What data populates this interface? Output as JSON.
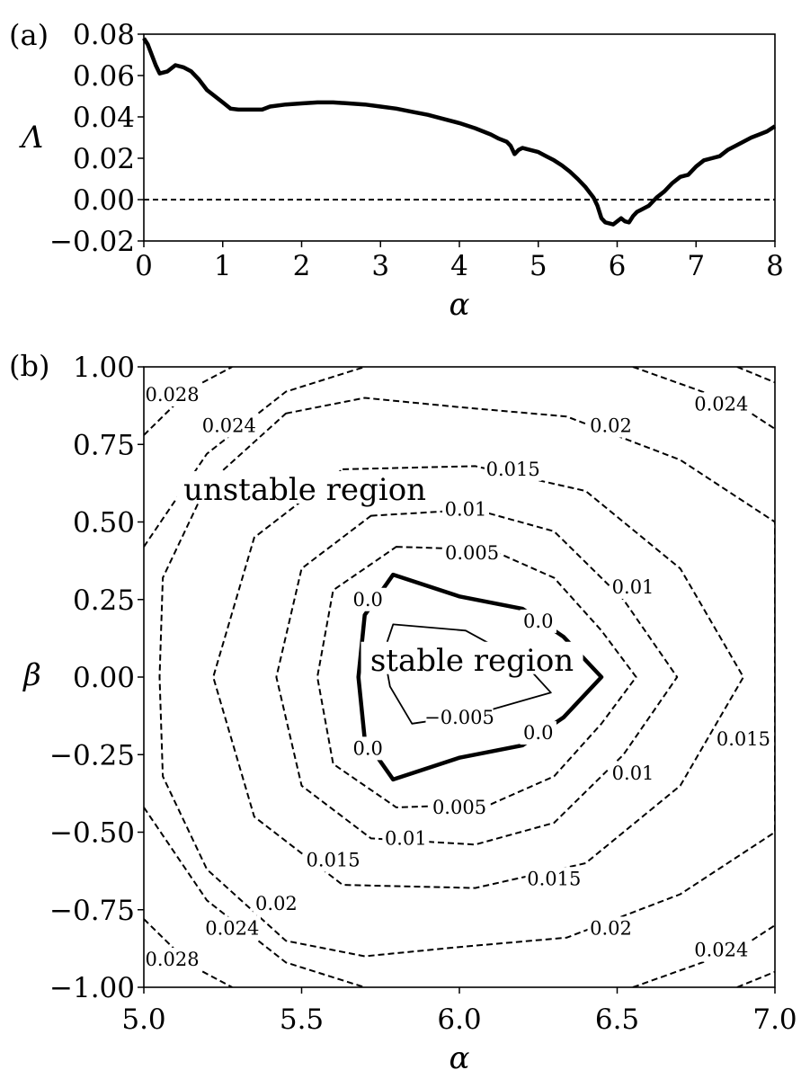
{
  "chart_data": [
    {
      "type": "line",
      "panel_label": "(a)",
      "xlabel": "α",
      "ylabel": "Λ",
      "xlim": [
        0,
        8
      ],
      "ylim": [
        -0.02,
        0.08
      ],
      "xticks": [
        0,
        1,
        2,
        3,
        4,
        5,
        6,
        7,
        8
      ],
      "xtick_labels": [
        "0",
        "1",
        "2",
        "3",
        "4",
        "5",
        "6",
        "7",
        "8"
      ],
      "yticks": [
        -0.02,
        0.0,
        0.02,
        0.04,
        0.06,
        0.08
      ],
      "ytick_labels": [
        "−0.02",
        "0.00",
        "0.02",
        "0.04",
        "0.06",
        "0.08"
      ],
      "grid": false,
      "reference_line": {
        "y": 0.0,
        "style": "dashed"
      },
      "series": [
        {
          "style": "solid-thick",
          "x": [
            0.0,
            0.05,
            0.1,
            0.15,
            0.2,
            0.3,
            0.4,
            0.5,
            0.6,
            0.7,
            0.8,
            0.9,
            1.0,
            1.1,
            1.2,
            1.3,
            1.4,
            1.5,
            1.6,
            1.8,
            2.0,
            2.2,
            2.4,
            2.6,
            2.8,
            3.0,
            3.2,
            3.4,
            3.6,
            3.8,
            4.0,
            4.2,
            4.4,
            4.5,
            4.6,
            4.65,
            4.7,
            4.75,
            4.8,
            4.85,
            4.9,
            5.0,
            5.1,
            5.2,
            5.3,
            5.4,
            5.5,
            5.6,
            5.7,
            5.75,
            5.8,
            5.85,
            5.9,
            5.95,
            6.0,
            6.05,
            6.1,
            6.15,
            6.2,
            6.25,
            6.3,
            6.4,
            6.5,
            6.6,
            6.7,
            6.8,
            6.9,
            7.0,
            7.1,
            7.2,
            7.3,
            7.4,
            7.5,
            7.6,
            7.7,
            7.8,
            7.9,
            8.0
          ],
          "y": [
            0.078,
            0.075,
            0.07,
            0.065,
            0.061,
            0.062,
            0.065,
            0.064,
            0.062,
            0.058,
            0.053,
            0.05,
            0.047,
            0.044,
            0.0435,
            0.0435,
            0.0435,
            0.0435,
            0.045,
            0.046,
            0.0465,
            0.047,
            0.047,
            0.0465,
            0.046,
            0.045,
            0.044,
            0.0425,
            0.041,
            0.039,
            0.037,
            0.0345,
            0.0315,
            0.0295,
            0.028,
            0.026,
            0.022,
            0.024,
            0.025,
            0.0245,
            0.024,
            0.023,
            0.021,
            0.019,
            0.0165,
            0.0135,
            0.01,
            0.006,
            0.001,
            -0.003,
            -0.009,
            -0.011,
            -0.0115,
            -0.012,
            -0.0105,
            -0.009,
            -0.0105,
            -0.011,
            -0.008,
            -0.006,
            -0.005,
            -0.003,
            0.001,
            0.004,
            0.008,
            0.011,
            0.012,
            0.016,
            0.019,
            0.02,
            0.021,
            0.024,
            0.026,
            0.028,
            0.03,
            0.0315,
            0.033,
            0.0355
          ]
        }
      ]
    },
    {
      "type": "contour",
      "panel_label": "(b)",
      "xlabel": "α",
      "ylabel": "β",
      "xlim": [
        5.0,
        7.0
      ],
      "ylim": [
        -1.0,
        1.0
      ],
      "xticks": [
        5.0,
        5.5,
        6.0,
        6.5,
        7.0
      ],
      "xtick_labels": [
        "5.0",
        "5.5",
        "6.0",
        "6.5",
        "7.0"
      ],
      "yticks": [
        -1.0,
        -0.75,
        -0.5,
        -0.25,
        0.0,
        0.25,
        0.5,
        0.75,
        1.0
      ],
      "ytick_labels": [
        "−1.00",
        "−0.75",
        "−0.50",
        "−0.25",
        "0.00",
        "0.25",
        "0.50",
        "0.75",
        "1.00"
      ],
      "grid": false,
      "levels": [
        {
          "value": -0.005,
          "style": "solid-thin",
          "points": [
            [
              5.79,
              0.17
            ],
            [
              6.02,
              0.15
            ],
            [
              6.2,
              0.05
            ],
            [
              6.29,
              -0.05
            ],
            [
              6.22,
              -0.07
            ],
            [
              6.05,
              -0.12
            ],
            [
              5.85,
              -0.15
            ],
            [
              5.78,
              -0.03
            ],
            [
              5.76,
              0.08
            ]
          ]
        },
        {
          "value": 0.0,
          "style": "solid-thick",
          "points": [
            [
              5.79,
              0.33
            ],
            [
              6.0,
              0.26
            ],
            [
              6.2,
              0.22
            ],
            [
              6.33,
              0.13
            ],
            [
              6.45,
              0.0
            ],
            [
              6.33,
              -0.13
            ],
            [
              6.2,
              -0.22
            ],
            [
              6.0,
              -0.26
            ],
            [
              5.79,
              -0.33
            ],
            [
              5.7,
              -0.2
            ],
            [
              5.68,
              0.0
            ],
            [
              5.7,
              0.2
            ]
          ]
        },
        {
          "value": 0.005,
          "style": "dashed",
          "points": [
            [
              5.8,
              0.42
            ],
            [
              6.1,
              0.41
            ],
            [
              6.3,
              0.32
            ],
            [
              6.45,
              0.15
            ],
            [
              6.56,
              0.0
            ],
            [
              6.45,
              -0.15
            ],
            [
              6.3,
              -0.32
            ],
            [
              6.1,
              -0.41
            ],
            [
              5.8,
              -0.42
            ],
            [
              5.6,
              -0.28
            ],
            [
              5.55,
              0.0
            ],
            [
              5.6,
              0.28
            ]
          ]
        },
        {
          "value": 0.01,
          "style": "dashed",
          "points": [
            [
              5.72,
              0.52
            ],
            [
              6.05,
              0.54
            ],
            [
              6.3,
              0.47
            ],
            [
              6.52,
              0.25
            ],
            [
              6.69,
              0.0
            ],
            [
              6.52,
              -0.25
            ],
            [
              6.3,
              -0.47
            ],
            [
              6.05,
              -0.54
            ],
            [
              5.72,
              -0.52
            ],
            [
              5.5,
              -0.35
            ],
            [
              5.42,
              0.0
            ],
            [
              5.5,
              0.35
            ]
          ]
        },
        {
          "value": 0.015,
          "style": "dashed",
          "points": [
            [
              5.63,
              0.67
            ],
            [
              6.05,
              0.68
            ],
            [
              6.4,
              0.6
            ],
            [
              6.7,
              0.35
            ],
            [
              6.9,
              0.0
            ],
            [
              6.7,
              -0.35
            ],
            [
              6.4,
              -0.6
            ],
            [
              6.05,
              -0.68
            ],
            [
              5.63,
              -0.67
            ],
            [
              5.35,
              -0.45
            ],
            [
              5.22,
              0.0
            ],
            [
              5.35,
              0.45
            ]
          ]
        },
        {
          "value": 0.02,
          "style": "dashed",
          "points": [
            [
              5.45,
              0.85
            ],
            [
              5.7,
              0.9
            ],
            [
              6.0,
              0.87
            ],
            [
              6.34,
              0.84
            ],
            [
              6.7,
              0.7
            ],
            [
              7.0,
              0.5
            ],
            [
              7.0,
              -0.5
            ],
            [
              6.7,
              -0.7
            ],
            [
              6.34,
              -0.84
            ],
            [
              6.0,
              -0.87
            ],
            [
              5.7,
              -0.9
            ],
            [
              5.45,
              -0.85
            ],
            [
              5.2,
              -0.62
            ],
            [
              5.06,
              -0.32
            ],
            [
              5.05,
              0.0
            ],
            [
              5.06,
              0.32
            ],
            [
              5.2,
              0.62
            ]
          ]
        },
        {
          "value": 0.024,
          "open": true,
          "segments": [
            [
              [
                5.0,
                0.42
              ],
              [
                5.2,
                0.72
              ],
              [
                5.45,
                0.92
              ],
              [
                5.7,
                1.0
              ]
            ],
            [
              [
                6.55,
                1.0
              ],
              [
                6.88,
                0.88
              ],
              [
                7.0,
                0.8
              ]
            ],
            [
              [
                5.0,
                -0.42
              ],
              [
                5.2,
                -0.72
              ],
              [
                5.45,
                -0.92
              ],
              [
                5.7,
                -1.0
              ]
            ],
            [
              [
                6.55,
                -1.0
              ],
              [
                6.88,
                -0.88
              ],
              [
                7.0,
                -0.8
              ]
            ]
          ],
          "style": "dashed"
        },
        {
          "value": 0.028,
          "open": true,
          "segments": [
            [
              [
                5.0,
                0.78
              ],
              [
                5.15,
                0.93
              ],
              [
                5.28,
                1.0
              ]
            ],
            [
              [
                6.88,
                1.0
              ],
              [
                7.0,
                0.95
              ]
            ],
            [
              [
                5.0,
                -0.78
              ],
              [
                5.15,
                -0.93
              ],
              [
                5.28,
                -1.0
              ]
            ],
            [
              [
                6.88,
                -1.0
              ],
              [
                7.0,
                -0.95
              ]
            ]
          ],
          "style": "dashed"
        }
      ],
      "contour_labels": [
        {
          "text": "0.028",
          "x": 5.09,
          "y": 0.91
        },
        {
          "text": "0.024",
          "x": 6.83,
          "y": 0.88
        },
        {
          "text": "0.024",
          "x": 5.27,
          "y": 0.81
        },
        {
          "text": "0.02",
          "x": 6.48,
          "y": 0.81
        },
        {
          "text": "0.015",
          "x": 6.17,
          "y": 0.67
        },
        {
          "text": "0.01",
          "x": 6.02,
          "y": 0.54
        },
        {
          "text": "0.005",
          "x": 6.04,
          "y": 0.4
        },
        {
          "text": "0.01",
          "x": 6.55,
          "y": 0.29
        },
        {
          "text": "0.0",
          "x": 5.71,
          "y": 0.25
        },
        {
          "text": "0.0",
          "x": 6.25,
          "y": 0.18
        },
        {
          "text": "−0.005",
          "x": 6.0,
          "y": -0.13
        },
        {
          "text": "0.0",
          "x": 5.71,
          "y": -0.23
        },
        {
          "text": "0.0",
          "x": 6.25,
          "y": -0.18
        },
        {
          "text": "0.015",
          "x": 6.9,
          "y": -0.2
        },
        {
          "text": "0.01",
          "x": 6.55,
          "y": -0.31
        },
        {
          "text": "0.005",
          "x": 6.0,
          "y": -0.42
        },
        {
          "text": "0.01",
          "x": 5.83,
          "y": -0.52
        },
        {
          "text": "0.015",
          "x": 5.6,
          "y": -0.59
        },
        {
          "text": "0.015",
          "x": 6.3,
          "y": -0.65
        },
        {
          "text": "0.02",
          "x": 5.42,
          "y": -0.73
        },
        {
          "text": "0.02",
          "x": 6.48,
          "y": -0.81
        },
        {
          "text": "0.024",
          "x": 5.28,
          "y": -0.81
        },
        {
          "text": "0.024",
          "x": 6.83,
          "y": -0.88
        },
        {
          "text": "0.028",
          "x": 5.09,
          "y": -0.91
        }
      ],
      "annotations": [
        {
          "text": "unstable region",
          "x": 5.51,
          "y": 0.6
        },
        {
          "text": "stable region",
          "x": 6.04,
          "y": 0.05
        }
      ]
    }
  ]
}
